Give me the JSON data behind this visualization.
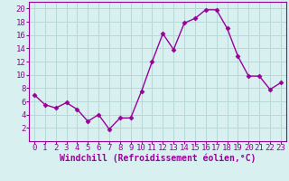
{
  "x": [
    0,
    1,
    2,
    3,
    4,
    5,
    6,
    7,
    8,
    9,
    10,
    11,
    12,
    13,
    14,
    15,
    16,
    17,
    18,
    19,
    20,
    21,
    22,
    23
  ],
  "y": [
    7,
    5.5,
    5,
    5.8,
    4.8,
    3,
    4,
    1.8,
    3.5,
    3.5,
    7.5,
    12,
    16.2,
    13.8,
    17.8,
    18.5,
    19.8,
    19.8,
    17,
    12.8,
    9.8,
    9.8,
    7.8,
    8.8
  ],
  "line_color": "#990099",
  "marker": "D",
  "marker_size": 2.5,
  "bg_color": "#d8f0f0",
  "grid_color": "#b8d8d8",
  "xlabel": "Windchill (Refroidissement éolien,°C)",
  "xlim": [
    -0.5,
    23.5
  ],
  "ylim": [
    0,
    21
  ],
  "yticks": [
    2,
    4,
    6,
    8,
    10,
    12,
    14,
    16,
    18,
    20
  ],
  "xticks": [
    0,
    1,
    2,
    3,
    4,
    5,
    6,
    7,
    8,
    9,
    10,
    11,
    12,
    13,
    14,
    15,
    16,
    17,
    18,
    19,
    20,
    21,
    22,
    23
  ],
  "label_color": "#990099",
  "tick_color": "#990099",
  "border_color": "#990099",
  "font_size": 6.5,
  "xlabel_fontsize": 7,
  "linewidth": 1.0
}
